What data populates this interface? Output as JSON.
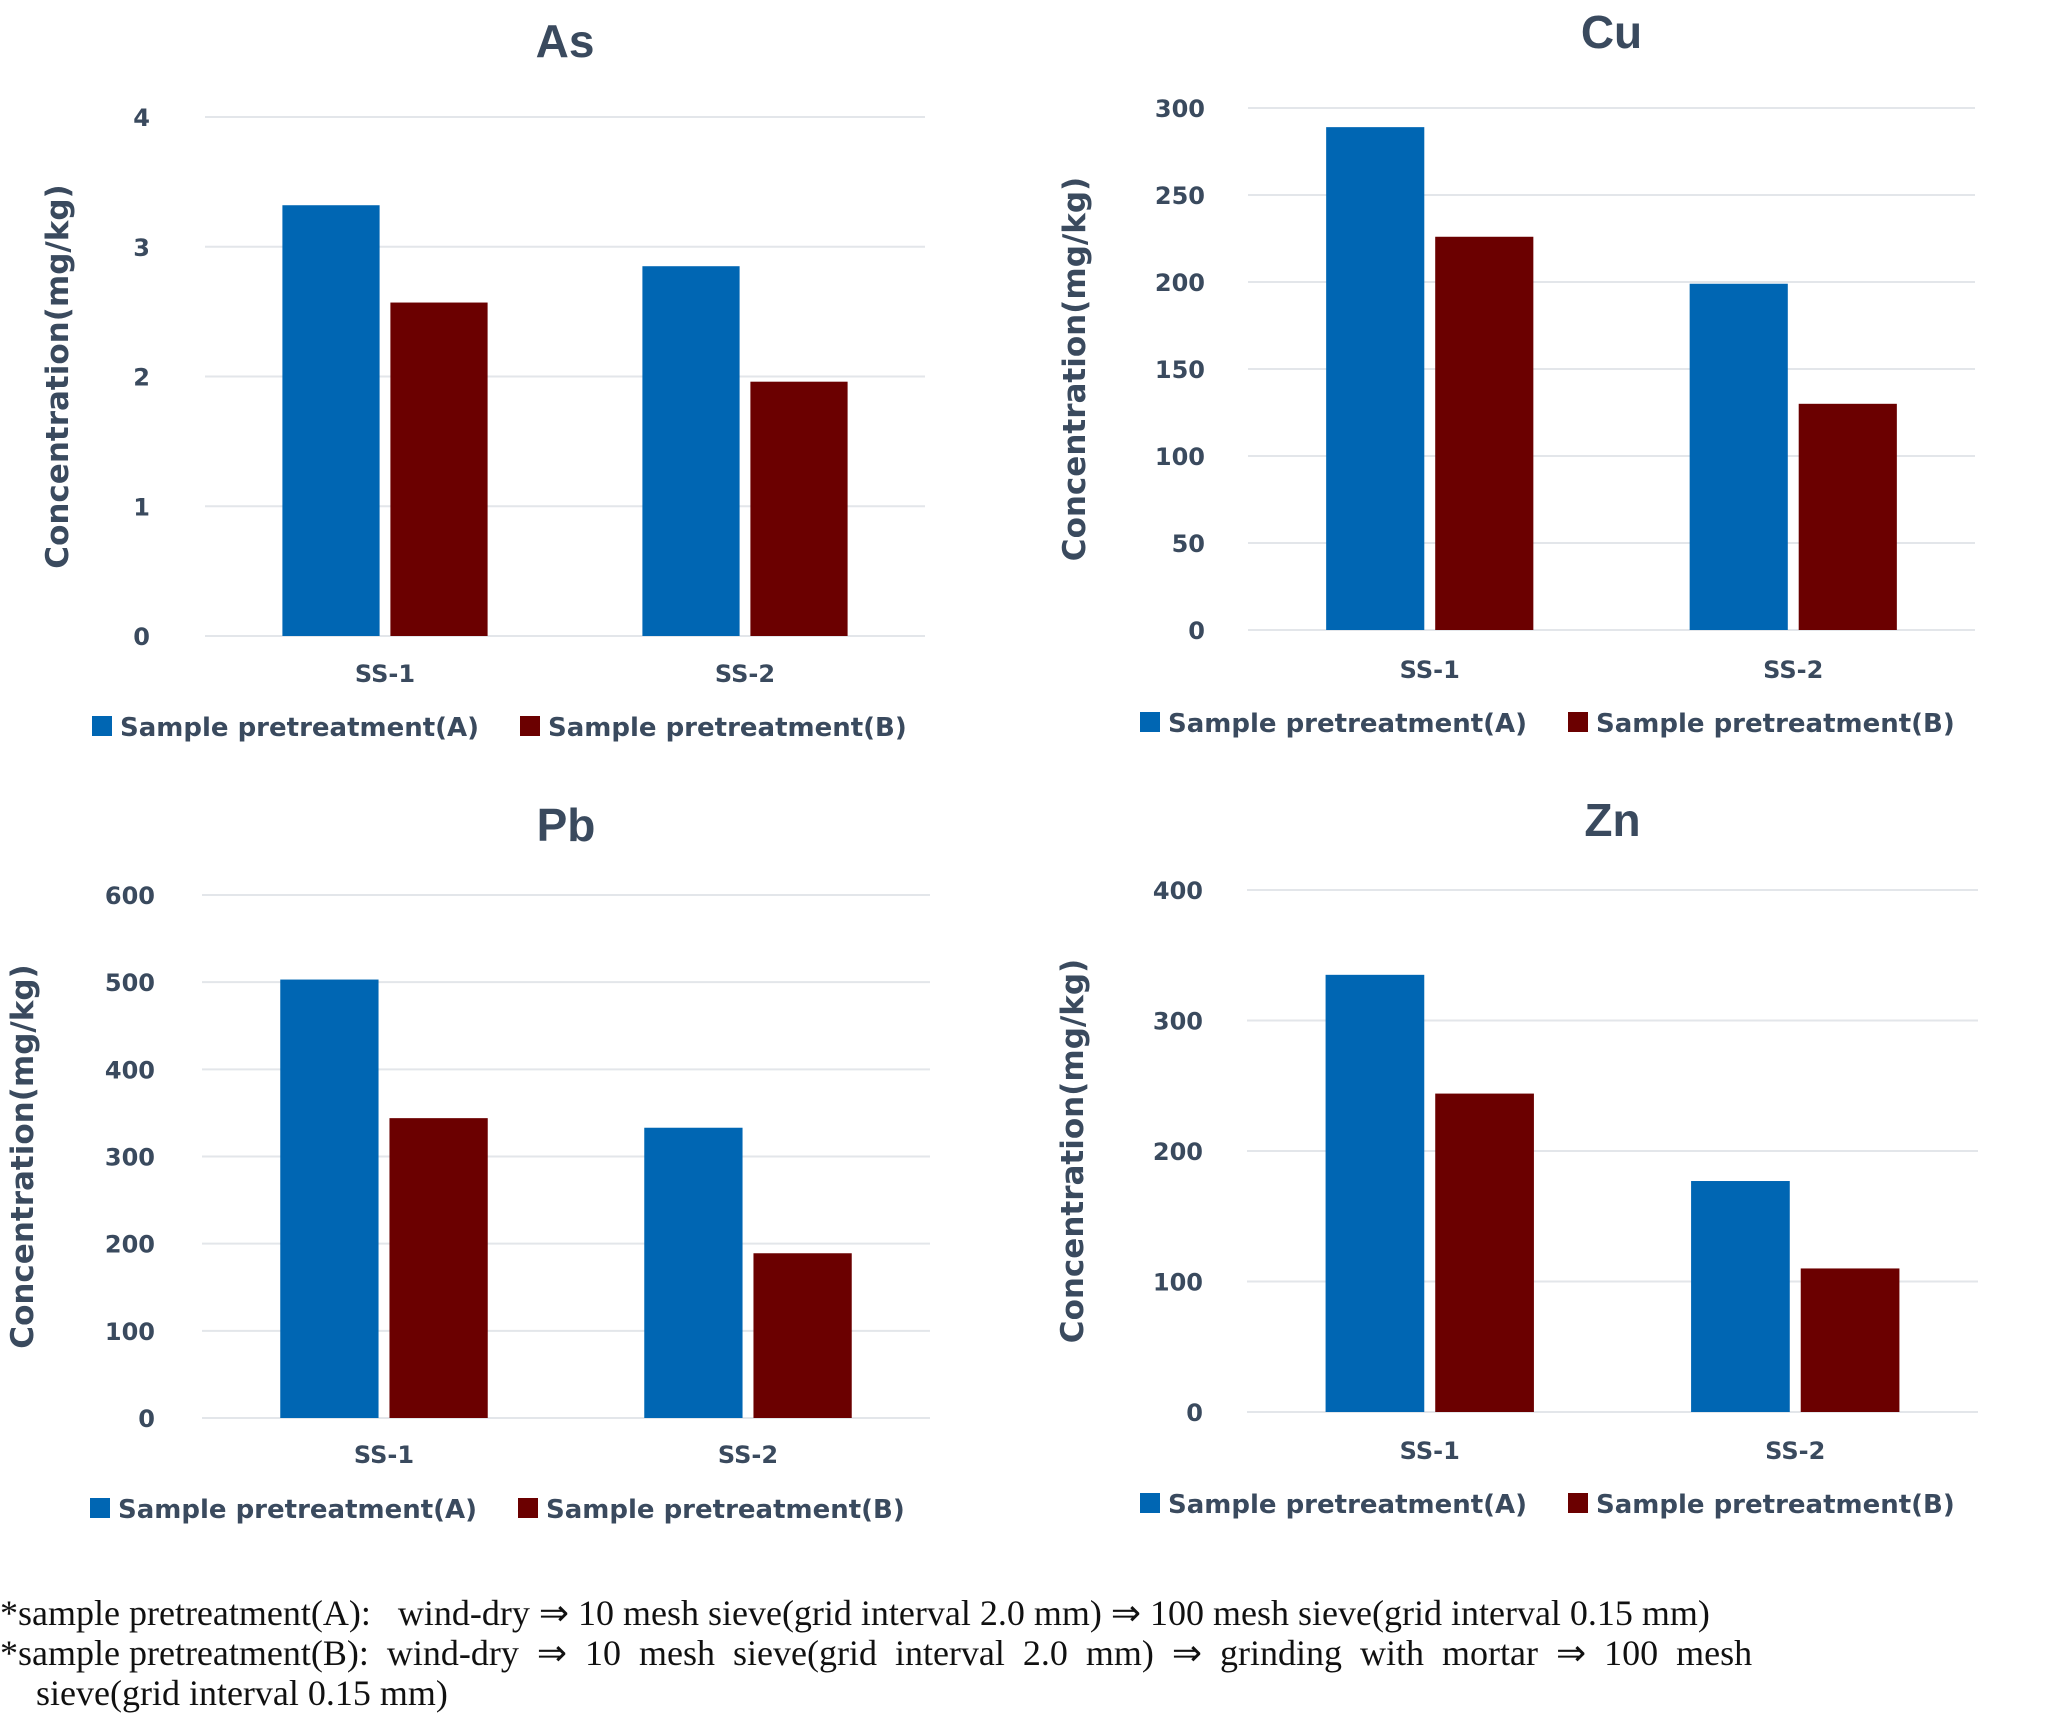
{
  "chart_data": [
    {
      "type": "bar",
      "title": "As",
      "xlabel": "",
      "ylabel": "Concentration(mg/kg)",
      "categories": [
        "SS-1",
        "SS-2"
      ],
      "series": [
        {
          "name": "Sample pretreatment(A)",
          "color": "#0066b3",
          "values": [
            3.32,
            2.85
          ]
        },
        {
          "name": "Sample pretreatment(B)",
          "color": "#6b0000",
          "values": [
            2.57,
            1.96
          ]
        }
      ],
      "ylim": [
        0,
        4
      ],
      "yticks": [
        0,
        1,
        2,
        3,
        4
      ],
      "grid": true,
      "legend": "bottom"
    },
    {
      "type": "bar",
      "title": "Cu",
      "xlabel": "",
      "ylabel": "Concentration(mg/kg)",
      "categories": [
        "SS-1",
        "SS-2"
      ],
      "series": [
        {
          "name": "Sample pretreatment(A)",
          "color": "#0066b3",
          "values": [
            289,
            199
          ]
        },
        {
          "name": "Sample pretreatment(B)",
          "color": "#6b0000",
          "values": [
            226,
            130
          ]
        }
      ],
      "ylim": [
        0,
        300
      ],
      "yticks": [
        0,
        50,
        100,
        150,
        200,
        250,
        300
      ],
      "grid": true,
      "legend": "bottom"
    },
    {
      "type": "bar",
      "title": "Pb",
      "xlabel": "",
      "ylabel": "Concentration(mg/kg)",
      "categories": [
        "SS-1",
        "SS-2"
      ],
      "series": [
        {
          "name": "Sample pretreatment(A)",
          "color": "#0066b3",
          "values": [
            503,
            333
          ]
        },
        {
          "name": "Sample pretreatment(B)",
          "color": "#6b0000",
          "values": [
            344,
            189
          ]
        }
      ],
      "ylim": [
        0,
        600
      ],
      "yticks": [
        0,
        100,
        200,
        300,
        400,
        500,
        600
      ],
      "grid": true,
      "legend": "bottom"
    },
    {
      "type": "bar",
      "title": "Zn",
      "xlabel": "",
      "ylabel": "Concentration(mg/kg)",
      "categories": [
        "SS-1",
        "SS-2"
      ],
      "series": [
        {
          "name": "Sample pretreatment(A)",
          "color": "#0066b3",
          "values": [
            335,
            177
          ]
        },
        {
          "name": "Sample pretreatment(B)",
          "color": "#6b0000",
          "values": [
            244,
            110
          ]
        }
      ],
      "ylim": [
        0,
        400
      ],
      "yticks": [
        0,
        100,
        200,
        300,
        400
      ],
      "grid": true,
      "legend": "bottom"
    }
  ],
  "footnotes": [
    "*sample pretreatment(A):   wind-dry ⇒ 10 mesh sieve(grid interval 2.0 mm) ⇒ 100 mesh sieve(grid interval 0.15 mm)",
    "*sample pretreatment(B):  wind-dry  ⇒  10  mesh  sieve(grid  interval  2.0  mm)  ⇒  grinding  with  mortar  ⇒  100  mesh",
    "    sieve(grid interval 0.15 mm)"
  ]
}
